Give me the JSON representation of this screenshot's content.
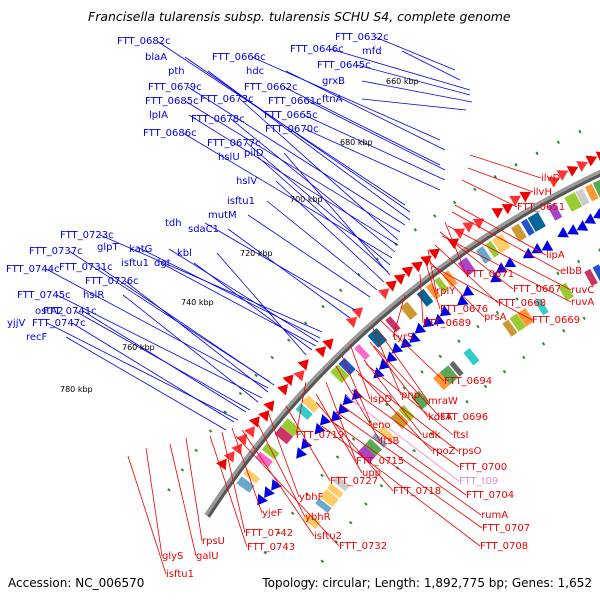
{
  "title": "Francisella tularensis subsp. tularensis SCHU S4, complete genome",
  "accession": "Accession: NC_006570",
  "summary": "Topology: circular; Length: 1,892,775 bp; Genes: 1,652",
  "colors": {
    "plus_strand": "#0000e6",
    "minus_strand": "#ee0000",
    "trna": "#ee88cc",
    "backbone": "#555555",
    "gc_skew": "#2a8a2a"
  },
  "kbp_ticks": [
    "660 kbp",
    "680 kbp",
    "700 kbp",
    "720 kbp",
    "740 kbp",
    "760 kbp",
    "780 kbp"
  ],
  "plus_strand_labels": [
    "FTT_0632c",
    "mfd",
    "FTT_0646c",
    "FTT_0645c",
    "grxB",
    "ftnA",
    "FTT_0666c",
    "hdc",
    "FTT_0662c",
    "FTT_0661c",
    "FTT_0665c",
    "FTT_0670c",
    "FTT_0682c",
    "blaA",
    "pth",
    "FTT_0679c",
    "FTT_0685c",
    "FTT_0673c",
    "lpIA",
    "FTT_0678c",
    "FTT_0686c",
    "FTT_0677c",
    "hslU",
    "pilD",
    "hslV",
    "isftu1",
    "mutM",
    "tdh",
    "sdaC1",
    "FTT_0723c",
    "glpT",
    "katG",
    "isftu1",
    "dgt",
    "kbl",
    "FTT_0737c",
    "FTT_0731c",
    "FTT_0744c",
    "FTT_0726c",
    "FTT_0745c",
    "hslR",
    "ostA2",
    "FTT_0741c",
    "yjjV",
    "FTT_0747c",
    "recF"
  ],
  "minus_strand_labels": [
    "ilvD",
    "ilvH",
    "FTT_0651",
    "lipA",
    "elbB",
    "FTT_0671",
    "ruvC",
    "FTT_0667",
    "ruvA",
    "rplY",
    "FTT_0668",
    "FTT_0676",
    "prsA",
    "FTT_0669",
    "FTT_0689",
    "tyrS",
    "FTT_0694",
    "pnp",
    "mraW",
    "ispD",
    "kdsA",
    "FTT_0696",
    "eno",
    "udk",
    "ftsI",
    "FTT_0719",
    "ftsB",
    "rpoZ",
    "rpsO",
    "FTT_0715",
    "FTT_0700",
    "upp",
    "FTT_t09",
    "FTT_0727",
    "FTT_0718",
    "FTT_0704",
    "ybhF",
    "rumA",
    "yjeF",
    "ybhR",
    "FTT_0707",
    "FTT_0742",
    "isftu2",
    "rpsU",
    "FTT_0743",
    "FTT_0732",
    "FTT_0708",
    "glyS",
    "galU",
    "isftu1"
  ]
}
